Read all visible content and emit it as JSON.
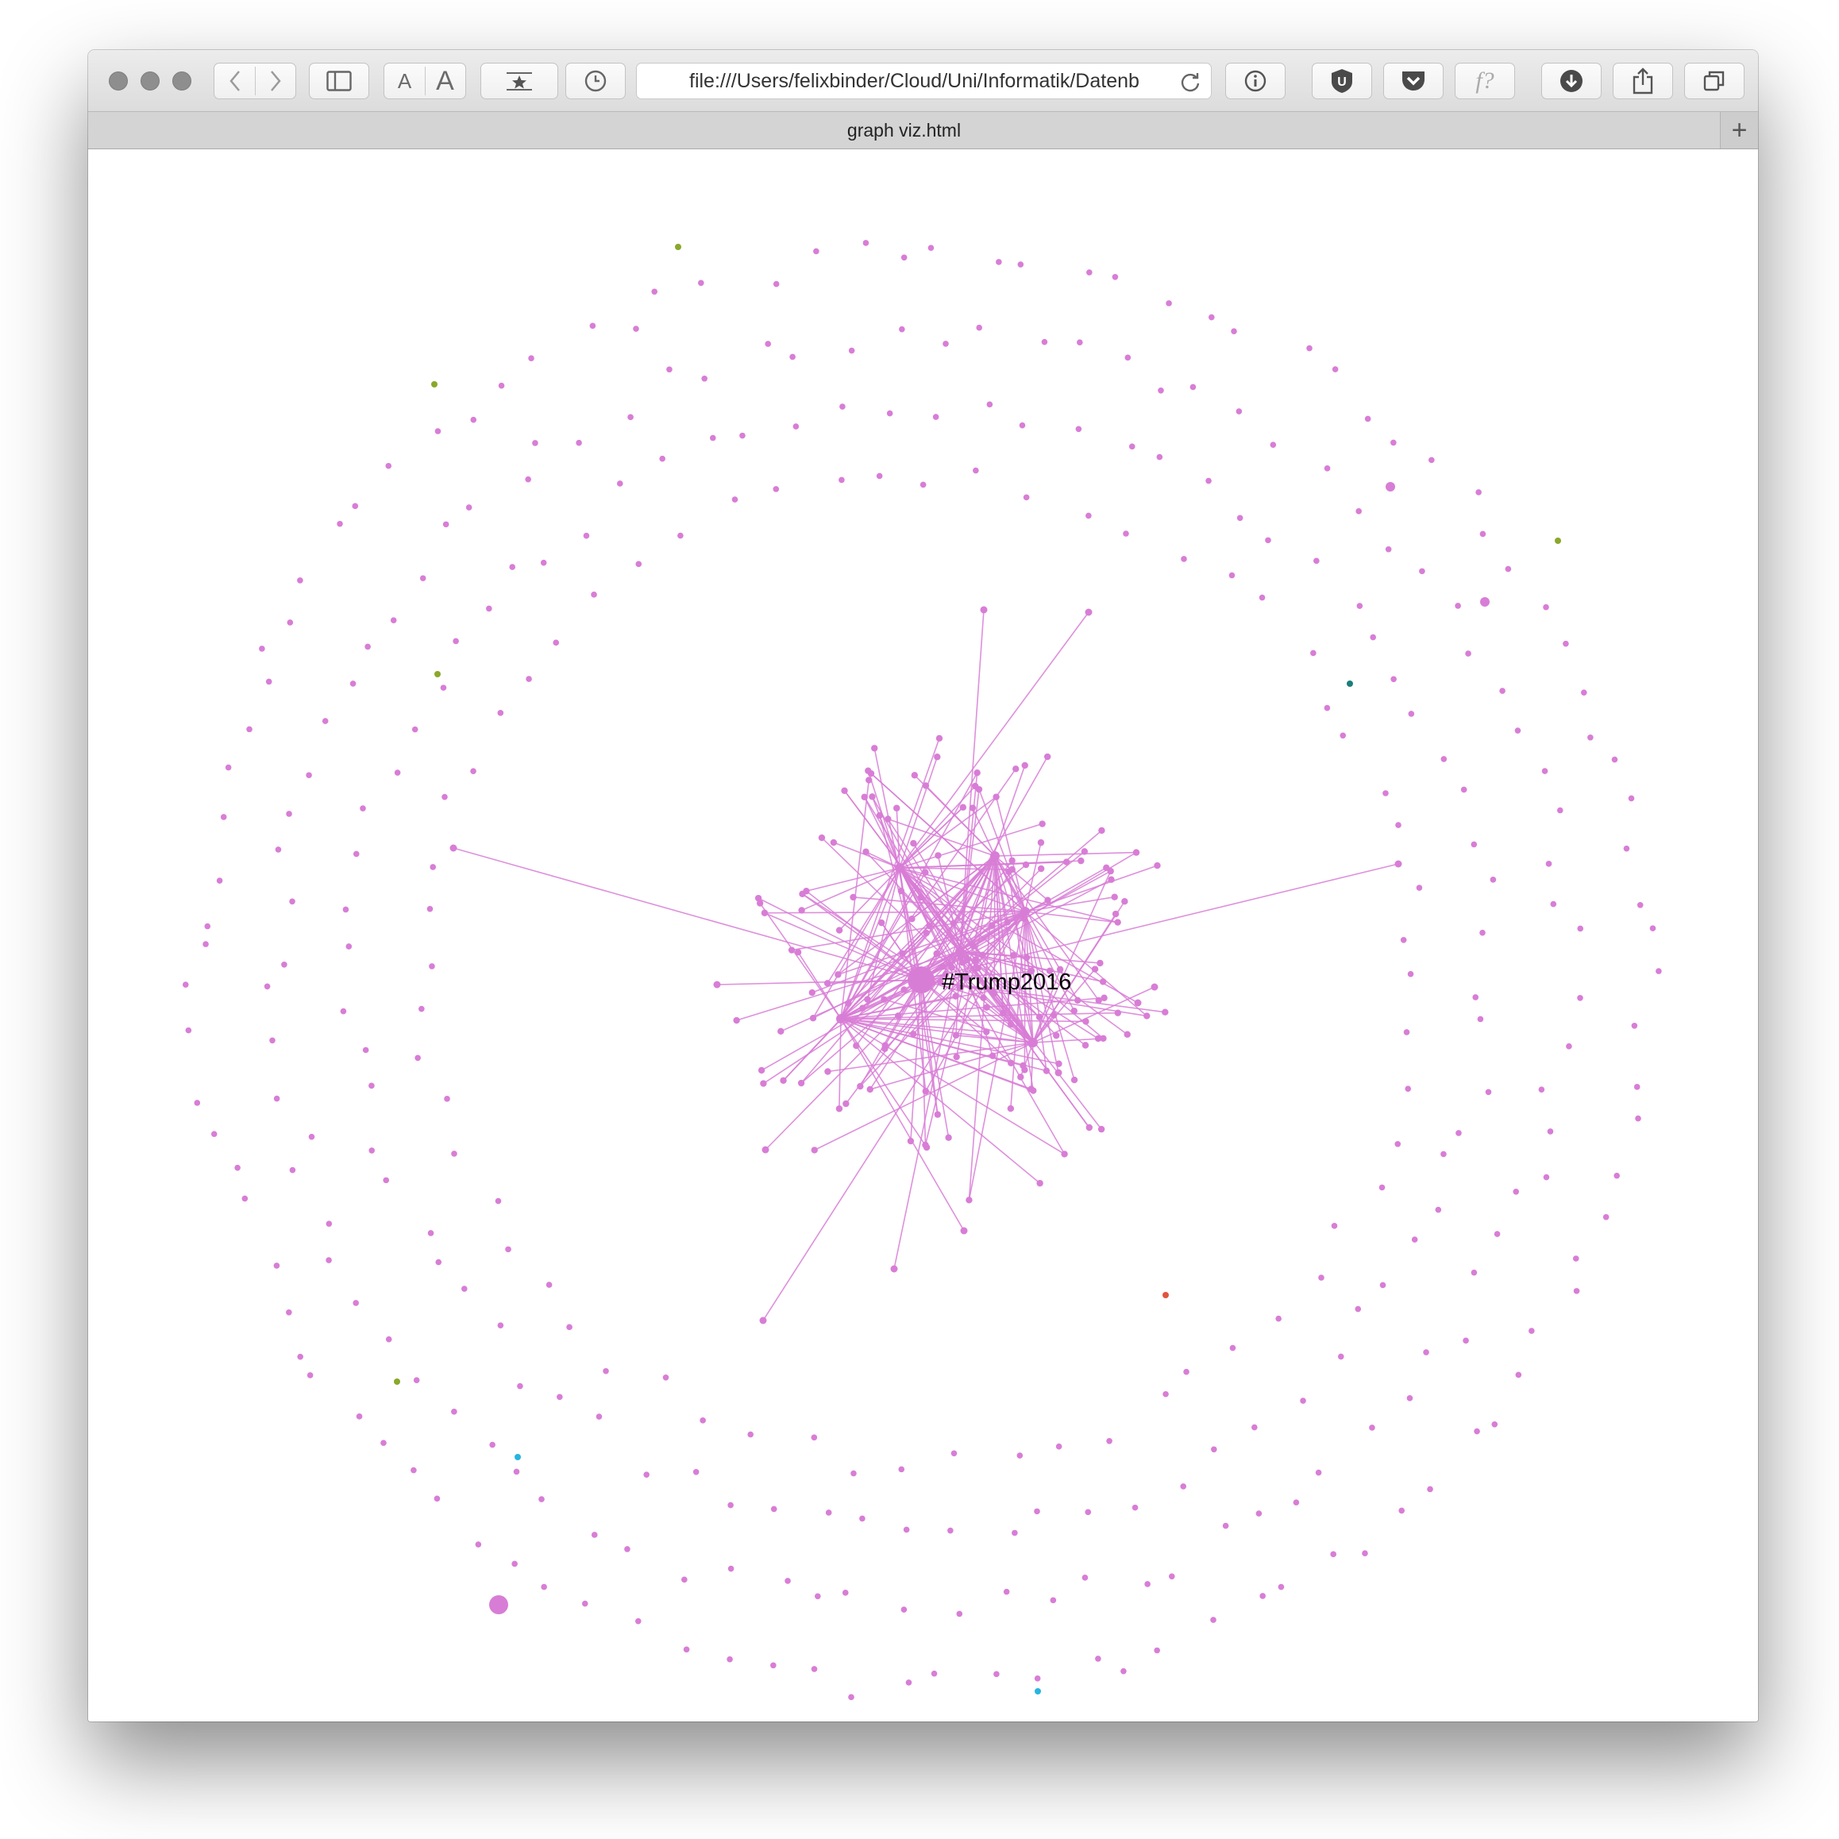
{
  "browser": {
    "address": "file:///Users/felixbinder/Cloud/Uni/Informatik/Datenb",
    "tab_title": "graph viz.html",
    "icons": {
      "back": "chevron-left-icon",
      "forward": "chevron-right-icon",
      "sidebar": "sidebar-icon",
      "text_smaller": "A",
      "text_larger": "A",
      "reader": "star-icon",
      "history": "clock-icon",
      "reload": "reload-icon",
      "info": "info-icon",
      "ublock": "U",
      "pocket": "pocket-icon",
      "fquestion": "f?",
      "download": "download-icon",
      "share": "share-icon",
      "tabs": "tabs-icon",
      "new_tab": "+"
    }
  },
  "graph": {
    "central_label": "#Trump2016",
    "colors": {
      "node": "#d87dd6",
      "edge": "#d87dd6",
      "olive": "#8aa829",
      "teal": "#1b7f7a",
      "red": "#e2553c",
      "cyan": "#27b5e0"
    }
  }
}
